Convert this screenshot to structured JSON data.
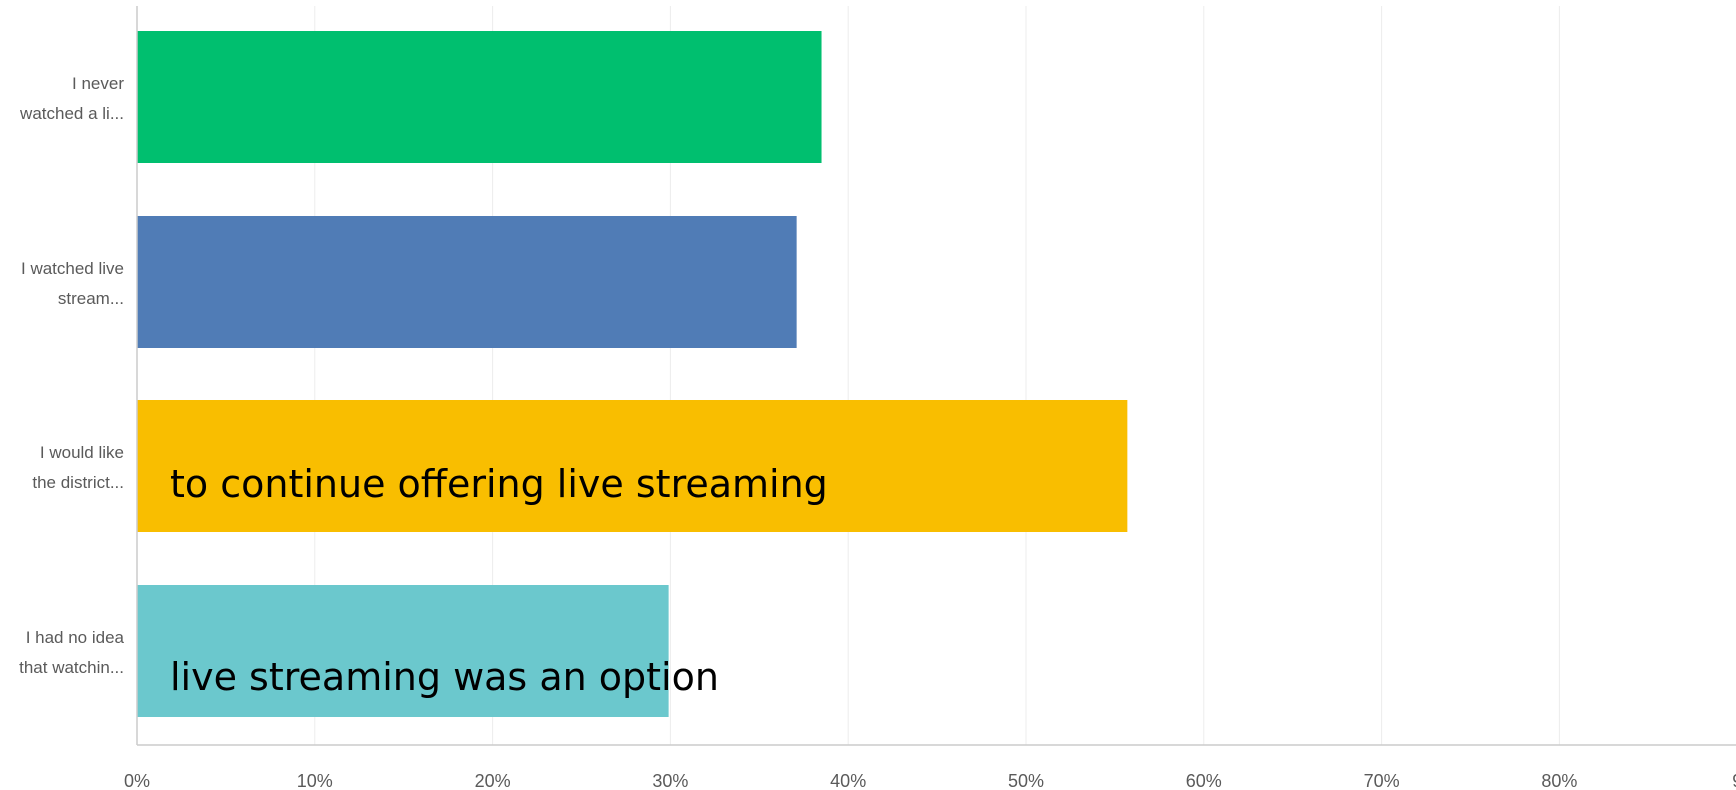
{
  "chart_data": {
    "type": "bar",
    "orientation": "horizontal",
    "categories": [
      [
        "I never",
        "watched a li..."
      ],
      [
        "I watched live",
        "stream..."
      ],
      [
        "I would like",
        "the district..."
      ],
      [
        "I had no idea",
        "that watchin..."
      ]
    ],
    "values": [
      38.5,
      37.1,
      55.7,
      29.9
    ],
    "colors": [
      "#00bf6f",
      "#507cb6",
      "#f9be00",
      "#6bc8cd"
    ],
    "xlim": [
      0,
      90
    ],
    "x_ticks": [
      "0%",
      "10%",
      "20%",
      "30%",
      "40%",
      "50%",
      "60%",
      "70%",
      "80%",
      "9"
    ],
    "annotations": [
      {
        "text": "to continue offering live streaming",
        "category_index": 2
      },
      {
        "text": "live streaming was an option",
        "category_index": 3
      }
    ],
    "grid": true,
    "axis_color": "#cccccc",
    "grid_color": "#ececec"
  }
}
